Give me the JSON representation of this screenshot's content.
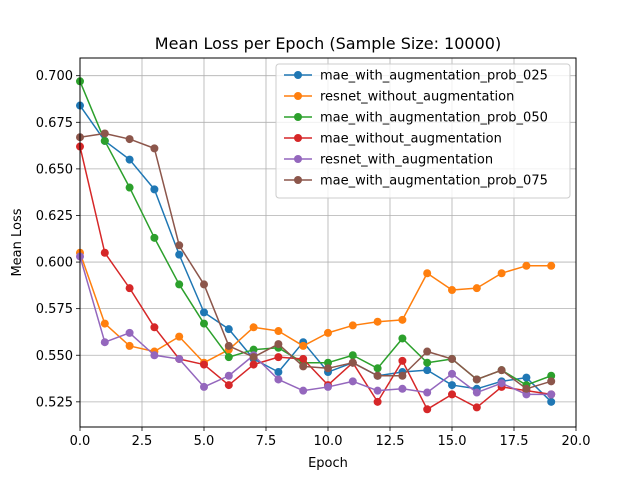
{
  "chart_data": {
    "type": "line",
    "title": "Mean Loss per Epoch (Sample Size: 10000)",
    "xlabel": "Epoch",
    "ylabel": "Mean Loss",
    "xlim": [
      0,
      20
    ],
    "ylim": [
      0.5115,
      0.7095
    ],
    "xticks": [
      0.0,
      2.5,
      5.0,
      7.5,
      10.0,
      12.5,
      15.0,
      17.5,
      20.0
    ],
    "xtick_labels": [
      "0.0",
      "2.5",
      "5.0",
      "7.5",
      "10.0",
      "12.5",
      "15.0",
      "17.5",
      "20.0"
    ],
    "yticks": [
      0.525,
      0.55,
      0.575,
      0.6,
      0.625,
      0.65,
      0.675,
      0.7
    ],
    "ytick_labels": [
      "0.525",
      "0.550",
      "0.575",
      "0.600",
      "0.625",
      "0.650",
      "0.675",
      "0.700"
    ],
    "grid": true,
    "legend_position": "top-right",
    "x": [
      0,
      1,
      2,
      3,
      4,
      5,
      6,
      7,
      8,
      9,
      10,
      11,
      12,
      13,
      14,
      15,
      16,
      17,
      18,
      19
    ],
    "series": [
      {
        "name": "mae_with_augmentation_prob_025",
        "color": "#1f77b4",
        "values": [
          0.684,
          0.665,
          0.655,
          0.639,
          0.604,
          0.573,
          0.564,
          0.548,
          0.541,
          0.557,
          0.541,
          0.546,
          0.539,
          0.541,
          0.542,
          0.534,
          0.532,
          0.536,
          0.538,
          0.525
        ]
      },
      {
        "name": "resnet_without_augmentation",
        "color": "#ff7f0e",
        "values": [
          0.605,
          0.567,
          0.555,
          0.552,
          0.56,
          0.546,
          0.553,
          0.565,
          0.563,
          0.555,
          0.562,
          0.566,
          0.568,
          0.569,
          0.594,
          0.585,
          0.586,
          0.594,
          0.598,
          0.598
        ]
      },
      {
        "name": "mae_with_augmentation_prob_050",
        "color": "#2ca02c",
        "values": [
          0.697,
          0.665,
          0.64,
          0.613,
          0.588,
          0.567,
          0.549,
          0.553,
          0.554,
          0.546,
          0.546,
          0.55,
          0.543,
          0.559,
          0.546,
          0.548,
          0.537,
          0.542,
          0.534,
          0.539
        ]
      },
      {
        "name": "mae_without_augmentation",
        "color": "#d62728",
        "values": [
          0.662,
          0.605,
          0.586,
          0.565,
          0.548,
          0.545,
          0.534,
          0.545,
          0.549,
          0.548,
          0.534,
          0.546,
          0.525,
          0.547,
          0.521,
          0.529,
          0.522,
          0.533,
          0.531,
          0.529
        ]
      },
      {
        "name": "resnet_with_augmentation",
        "color": "#9467bd",
        "values": [
          0.603,
          0.557,
          0.562,
          0.55,
          0.548,
          0.533,
          0.539,
          0.55,
          0.537,
          0.531,
          0.533,
          0.536,
          0.531,
          0.532,
          0.53,
          0.54,
          0.53,
          0.535,
          0.529,
          0.529
        ]
      },
      {
        "name": "mae_with_augmentation_prob_075",
        "color": "#8c564b",
        "values": [
          0.667,
          0.669,
          0.666,
          0.661,
          0.609,
          0.588,
          0.555,
          0.549,
          0.556,
          0.544,
          0.543,
          0.546,
          0.539,
          0.539,
          0.552,
          0.548,
          0.537,
          0.542,
          0.532,
          0.536
        ]
      }
    ]
  }
}
